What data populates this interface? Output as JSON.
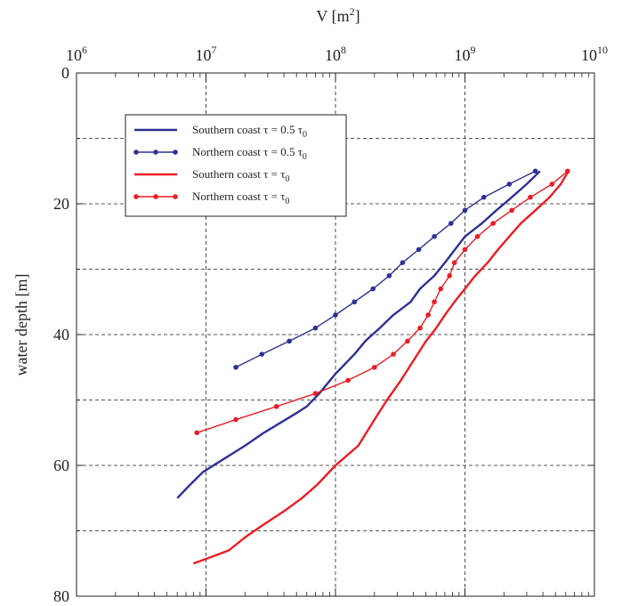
{
  "chart_data": {
    "type": "line",
    "title": "",
    "x_axis": {
      "label": "V [m",
      "label_superscript": "2",
      "label_suffix": "]",
      "scale": "log",
      "position": "top",
      "range": [
        1000000,
        10000000000
      ],
      "ticks": [
        {
          "base": "10",
          "exp": "6"
        },
        {
          "base": "10",
          "exp": "7"
        },
        {
          "base": "10",
          "exp": "8"
        },
        {
          "base": "10",
          "exp": "9"
        },
        {
          "base": "10",
          "exp": "10"
        }
      ]
    },
    "y_axis": {
      "label": "water depth [m]",
      "range": [
        0,
        80
      ],
      "inverted": true,
      "ticks": [
        "0",
        "20",
        "40",
        "60",
        "80"
      ]
    },
    "grid": true,
    "legend_position": "top-left",
    "series": [
      {
        "name": "Southern coast τ = 0.5 τ0",
        "legend": {
          "text": "Southern coast τ = 0.5 τ",
          "subscript": "0"
        },
        "color": "#2e3192",
        "markers": false,
        "points": [
          [
            6000000,
            65
          ],
          [
            7500000,
            63
          ],
          [
            9500000,
            61
          ],
          [
            20000000,
            57
          ],
          [
            28000000,
            55
          ],
          [
            50000000,
            52
          ],
          [
            60000000,
            51
          ],
          [
            75000000,
            49
          ],
          [
            100000000,
            46
          ],
          [
            140000000,
            43
          ],
          [
            170000000,
            41
          ],
          [
            220000000,
            39
          ],
          [
            280000000,
            37
          ],
          [
            380000000,
            35
          ],
          [
            450000000,
            33
          ],
          [
            580000000,
            31
          ],
          [
            700000000,
            29
          ],
          [
            1000000000,
            25
          ],
          [
            1350000000,
            23
          ],
          [
            1750000000,
            21
          ],
          [
            2300000000,
            19
          ],
          [
            3000000000,
            17
          ],
          [
            3800000000,
            15
          ]
        ]
      },
      {
        "name": "Northern coast τ = 0.5 τ0",
        "legend": {
          "text": "Northern coast τ = 0.5 τ",
          "subscript": "0"
        },
        "color": "#2e3192",
        "markers": true,
        "points": [
          [
            17000000,
            45
          ],
          [
            27000000,
            43
          ],
          [
            44000000,
            41
          ],
          [
            70000000,
            39
          ],
          [
            100000000,
            37
          ],
          [
            140000000,
            35
          ],
          [
            195000000,
            33
          ],
          [
            260000000,
            31
          ],
          [
            330000000,
            29
          ],
          [
            440000000,
            27
          ],
          [
            580000000,
            25
          ],
          [
            780000000,
            23
          ],
          [
            1000000000,
            21
          ],
          [
            1400000000,
            19
          ],
          [
            2200000000,
            17
          ],
          [
            3500000000,
            15
          ]
        ]
      },
      {
        "name": "Southern coast τ = τ0",
        "legend": {
          "text": "Southern coast τ = τ",
          "subscript": "0"
        },
        "color": "#ed1c24",
        "markers": false,
        "points": [
          [
            8000000,
            75
          ],
          [
            11000000,
            74
          ],
          [
            15000000,
            73
          ],
          [
            20000000,
            71
          ],
          [
            28000000,
            69
          ],
          [
            40000000,
            67
          ],
          [
            55000000,
            65
          ],
          [
            72000000,
            63
          ],
          [
            100000000,
            60
          ],
          [
            150000000,
            57
          ],
          [
            200000000,
            53
          ],
          [
            250000000,
            50
          ],
          [
            320000000,
            47
          ],
          [
            430000000,
            43
          ],
          [
            500000000,
            41
          ],
          [
            600000000,
            39
          ],
          [
            700000000,
            37
          ],
          [
            830000000,
            35
          ],
          [
            1000000000,
            33
          ],
          [
            1200000000,
            31
          ],
          [
            1500000000,
            29
          ],
          [
            1800000000,
            27
          ],
          [
            2200000000,
            25
          ],
          [
            2700000000,
            23
          ],
          [
            3500000000,
            21
          ],
          [
            4500000000,
            19
          ],
          [
            5500000000,
            17
          ],
          [
            6300000000,
            15
          ]
        ]
      },
      {
        "name": "Northern coast τ = τ0",
        "legend": {
          "text": "Northern coast τ = τ",
          "subscript": "0"
        },
        "color": "#ed1c24",
        "markers": true,
        "points": [
          [
            8500000,
            55
          ],
          [
            17000000,
            53
          ],
          [
            35000000,
            51
          ],
          [
            70000000,
            49
          ],
          [
            125000000,
            47
          ],
          [
            200000000,
            45
          ],
          [
            280000000,
            43
          ],
          [
            360000000,
            41
          ],
          [
            450000000,
            39
          ],
          [
            520000000,
            37
          ],
          [
            580000000,
            35
          ],
          [
            650000000,
            33
          ],
          [
            760000000,
            31
          ],
          [
            830000000,
            29
          ],
          [
            1000000000,
            27
          ],
          [
            1250000000,
            25
          ],
          [
            1650000000,
            23
          ],
          [
            2300000000,
            21
          ],
          [
            3200000000,
            19
          ],
          [
            4700000000,
            17
          ],
          [
            6200000000,
            15
          ]
        ]
      }
    ]
  }
}
